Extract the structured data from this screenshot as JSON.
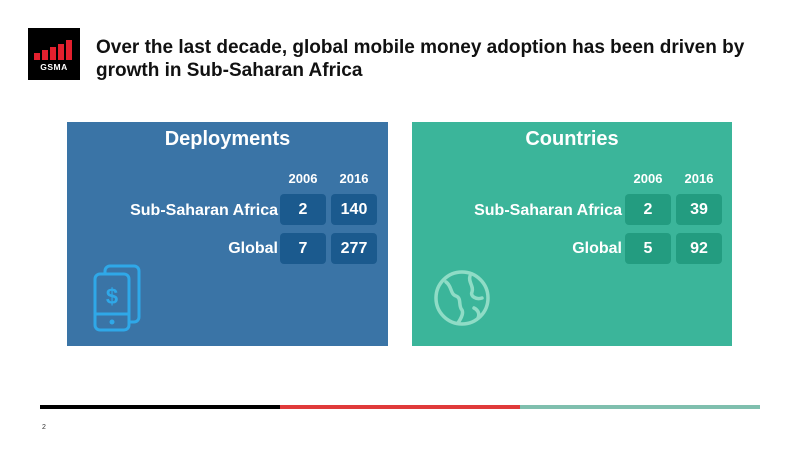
{
  "logo": {
    "text": "GSMA",
    "brand_color": "#e4202e",
    "background": "#000000"
  },
  "title": "Over the last decade, global mobile money adoption has been driven by growth in Sub-Saharan Africa",
  "panels": {
    "deployments": {
      "title": "Deployments",
      "color": "#3a74a6",
      "years": [
        "2006",
        "2016"
      ],
      "rows": [
        {
          "label": "Sub-Saharan Africa",
          "values": [
            "2",
            "140"
          ]
        },
        {
          "label": "Global",
          "values": [
            "7",
            "277"
          ]
        }
      ],
      "icon": "mobile-money-phone-icon"
    },
    "countries": {
      "title": "Countries",
      "color": "#3bb59a",
      "years": [
        "2006",
        "2016"
      ],
      "rows": [
        {
          "label": "Sub-Saharan Africa",
          "values": [
            "2",
            "39"
          ]
        },
        {
          "label": "Global",
          "values": [
            "5",
            "92"
          ]
        }
      ],
      "icon": "globe-icon"
    }
  },
  "footer": {
    "page_number": "2",
    "divider_colors": [
      "#000000",
      "#e03a3a",
      "#7fbfae"
    ]
  }
}
